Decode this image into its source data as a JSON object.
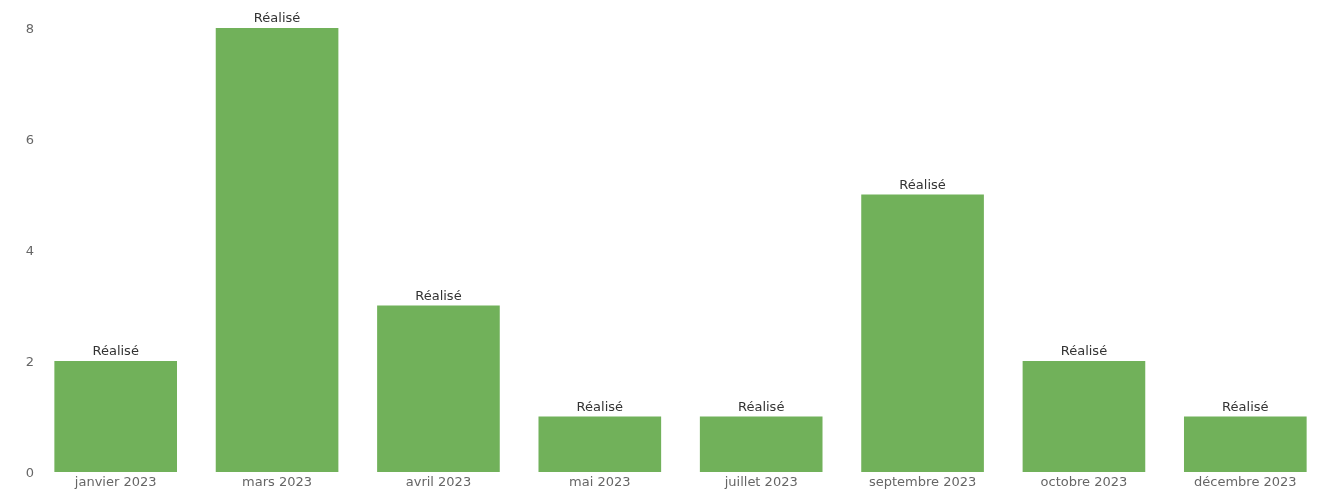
{
  "chart_data": {
    "type": "bar",
    "categories": [
      "janvier 2023",
      "mars 2023",
      "avril 2023",
      "mai 2023",
      "juillet 2023",
      "septembre 2023",
      "octobre 2023",
      "décembre 2023"
    ],
    "values": [
      2,
      8,
      3,
      1,
      1,
      5,
      2,
      1
    ],
    "value_labels": [
      "Réalisé",
      "Réalisé",
      "Réalisé",
      "Réalisé",
      "Réalisé",
      "Réalisé",
      "Réalisé",
      "Réalisé"
    ],
    "color": "#71b15a",
    "ylim": [
      0,
      8
    ],
    "yticks": [
      0,
      2,
      4,
      6,
      8
    ],
    "grid": false
  }
}
